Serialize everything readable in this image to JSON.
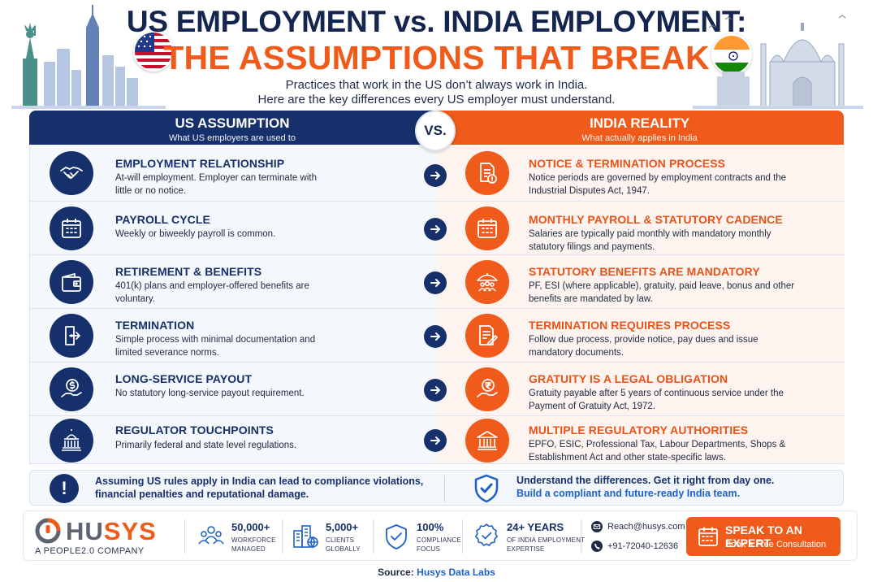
{
  "header": {
    "title_line1": "US EMPLOYMENT vs. INDIA EMPLOYMENT:",
    "title_line2": "THE ASSUMPTIONS THAT BREAK",
    "subtitle_line1": "Practices that work in the US don’t always work in India.",
    "subtitle_line2": "Here are the key differences every US employer must understand."
  },
  "columns": {
    "us": {
      "title": "US ASSUMPTION",
      "subtitle": "What US employers are used to"
    },
    "vs": "VS.",
    "india": {
      "title": "INDIA REALITY",
      "subtitle": "What actually applies in India"
    }
  },
  "rows": [
    {
      "us_icon": "handshake-icon",
      "us_title": "EMPLOYMENT RELATIONSHIP",
      "us_desc": "At-will employment. Employer can terminate with little or no notice.",
      "in_icon": "notice-document-icon",
      "in_title": "NOTICE & TERMINATION PROCESS",
      "in_desc": "Notice periods are governed by employment contracts and the Industrial Disputes Act, 1947."
    },
    {
      "us_icon": "calendar-icon",
      "us_title": "PAYROLL CYCLE",
      "us_desc": "Weekly or biweekly payroll is common.",
      "in_icon": "calendar-icon",
      "in_title": "MONTHLY PAYROLL & STATUTORY CADENCE",
      "in_desc": "Salaries are typically paid monthly with mandatory monthly statutory filings and payments."
    },
    {
      "us_icon": "wallet-icon",
      "us_title": "RETIREMENT & BENEFITS",
      "us_desc": "401(k) plans and employer-offered benefits are voluntary.",
      "in_icon": "umbrella-people-icon",
      "in_title": "STATUTORY BENEFITS ARE MANDATORY",
      "in_desc": "PF, ESI (where applicable), gratuity, paid leave, bonus and other benefits are mandated by law."
    },
    {
      "us_icon": "exit-door-icon",
      "us_title": "TERMINATION",
      "us_desc": "Simple process with minimal documentation and limited severance norms.",
      "in_icon": "document-pen-icon",
      "in_title": "TERMINATION REQUIRES PROCESS",
      "in_desc": "Follow due process, provide notice, pay dues and issue mandatory documents."
    },
    {
      "us_icon": "dollar-hand-icon",
      "us_title": "LONG-SERVICE PAYOUT",
      "us_desc": "No statutory long-service payout requirement.",
      "in_icon": "rupee-hand-icon",
      "in_title": "GRATUITY IS A LEGAL OBLIGATION",
      "in_desc": "Gratuity payable after 5 years of continuous service under the Payment of Gratuity Act, 1972."
    },
    {
      "us_icon": "capitol-icon",
      "us_title": "REGULATOR TOUCHPOINTS",
      "us_desc": "Primarily federal and state level regulations.",
      "in_icon": "government-building-icon",
      "in_title": "MULTIPLE REGULATORY AUTHORITIES",
      "in_desc": "EPFO, ESIC, Professional Tax, Labour Departments, Shops & Establishment Act and other state-specific laws."
    }
  ],
  "warning": {
    "icon_text": "!",
    "left_text": "Assuming US rules apply in India can lead to compliance violations, financial penalties and reputational damage.",
    "right_line1": "Understand the differences. Get it right from day one.",
    "right_line2": "Build a compliant and future-ready India team."
  },
  "footer": {
    "logo_hu": "HU",
    "logo_sys": "SYS",
    "logo_sub": "A PEOPLE2.0 COMPANY",
    "stats": [
      {
        "icon": "people-icon",
        "number": "50,000+",
        "label_line1": "WORKFORCE",
        "label_line2": "MANAGED"
      },
      {
        "icon": "buildings-globe-icon",
        "number": "5,000+",
        "label_line1": "CLIENTS",
        "label_line2": "GLOBALLY"
      },
      {
        "icon": "shield-check-icon",
        "number": "100%",
        "label_line1": "COMPLIANCE",
        "label_line2": "FOCUS"
      },
      {
        "icon": "award-badge-icon",
        "number": "24+ YEARS",
        "label_line1": "OF INDIA EMPLOYMENT",
        "label_line2": "EXPERTISE"
      }
    ],
    "email": "Reach@husys.com",
    "phone": "+91-72040-12636",
    "cta_title": "SPEAK TO AN EXPERT",
    "cta_sub": "Book a Free Consultation"
  },
  "source": {
    "label": "Source:",
    "value": "Husys Data Labs"
  },
  "colors": {
    "navy": "#15306b",
    "orange": "#f05a1a",
    "link_blue": "#1e62c9"
  }
}
